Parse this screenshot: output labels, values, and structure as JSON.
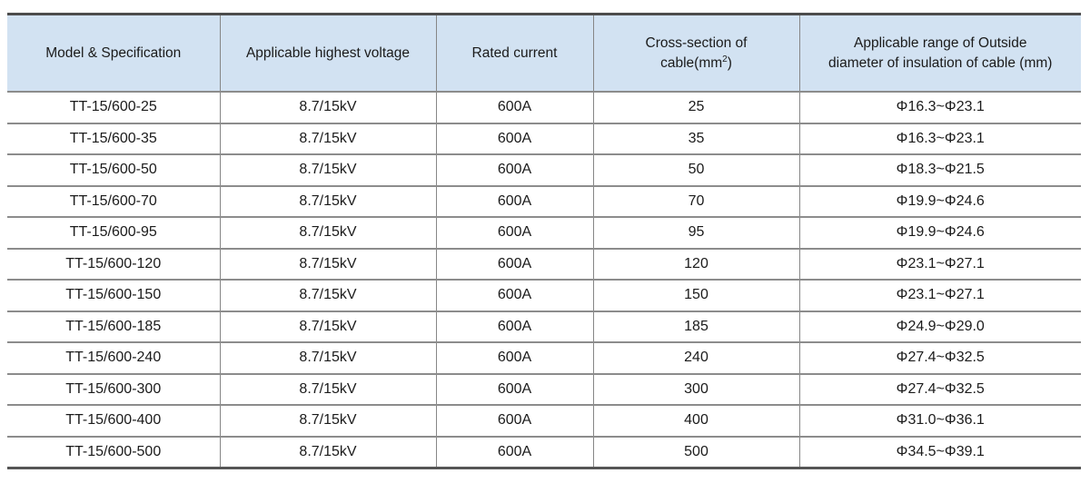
{
  "table": {
    "columns": [
      {
        "id": "model",
        "label": "Model & Specification"
      },
      {
        "id": "voltage",
        "label": "Applicable highest voltage"
      },
      {
        "id": "current",
        "label": "Rated current"
      },
      {
        "id": "cross_section",
        "line1": "Cross-section of",
        "line2_pre": "cable(mm",
        "sup": "2",
        "line2_post": ")"
      },
      {
        "id": "diameter_range",
        "line1": "Applicable range of Outside",
        "line2": "diameter of insulation of cable (mm)"
      }
    ],
    "rows": [
      {
        "model": "TT-15/600-25",
        "voltage": "8.7/15kV",
        "current": "600A",
        "cross_section": "25",
        "diameter_range": "Φ16.3~Φ23.1"
      },
      {
        "model": "TT-15/600-35",
        "voltage": "8.7/15kV",
        "current": "600A",
        "cross_section": "35",
        "diameter_range": "Φ16.3~Φ23.1"
      },
      {
        "model": "TT-15/600-50",
        "voltage": "8.7/15kV",
        "current": "600A",
        "cross_section": "50",
        "diameter_range": "Φ18.3~Φ21.5"
      },
      {
        "model": "TT-15/600-70",
        "voltage": "8.7/15kV",
        "current": "600A",
        "cross_section": "70",
        "diameter_range": "Φ19.9~Φ24.6"
      },
      {
        "model": "TT-15/600-95",
        "voltage": "8.7/15kV",
        "current": "600A",
        "cross_section": "95",
        "diameter_range": "Φ19.9~Φ24.6"
      },
      {
        "model": "TT-15/600-120",
        "voltage": "8.7/15kV",
        "current": "600A",
        "cross_section": "120",
        "diameter_range": "Φ23.1~Φ27.1"
      },
      {
        "model": "TT-15/600-150",
        "voltage": "8.7/15kV",
        "current": "600A",
        "cross_section": "150",
        "diameter_range": "Φ23.1~Φ27.1"
      },
      {
        "model": "TT-15/600-185",
        "voltage": "8.7/15kV",
        "current": "600A",
        "cross_section": "185",
        "diameter_range": "Φ24.9~Φ29.0"
      },
      {
        "model": "TT-15/600-240",
        "voltage": "8.7/15kV",
        "current": "600A",
        "cross_section": "240",
        "diameter_range": "Φ27.4~Φ32.5"
      },
      {
        "model": "TT-15/600-300",
        "voltage": "8.7/15kV",
        "current": "600A",
        "cross_section": "300",
        "diameter_range": "Φ27.4~Φ32.5"
      },
      {
        "model": "TT-15/600-400",
        "voltage": "8.7/15kV",
        "current": "600A",
        "cross_section": "400",
        "diameter_range": "Φ31.0~Φ36.1"
      },
      {
        "model": "TT-15/600-500",
        "voltage": "8.7/15kV",
        "current": "600A",
        "cross_section": "500",
        "diameter_range": "Φ34.5~Φ39.1"
      }
    ]
  },
  "colors": {
    "header_bg": "#d2e2f2",
    "grid_line": "#8c8c8c",
    "outer_border": "#4c4c4c",
    "text": "#1b1b1b"
  }
}
